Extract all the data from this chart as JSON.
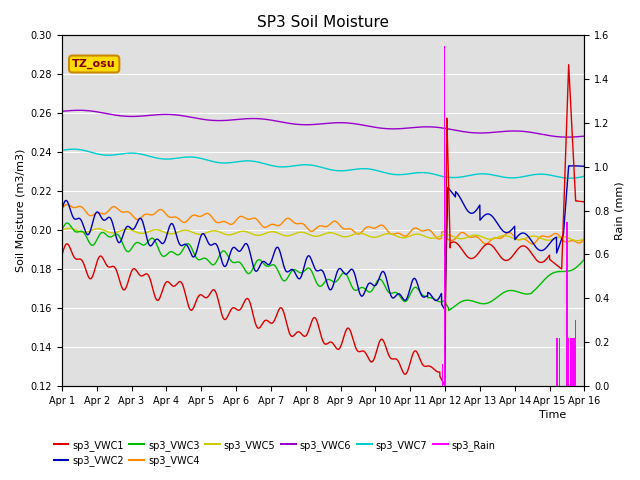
{
  "title": "SP3 Soil Moisture",
  "xlabel": "Time",
  "ylabel_left": "Soil Moisture (m3/m3)",
  "ylabel_right": "Rain (mm)",
  "xlim_days": [
    0,
    15
  ],
  "ylim_left": [
    0.12,
    0.3
  ],
  "ylim_right": [
    0.0,
    1.6
  ],
  "xtick_labels": [
    "Apr 1",
    "Apr 2",
    "Apr 3",
    "Apr 4",
    "Apr 5",
    "Apr 6",
    "Apr 7",
    "Apr 8",
    "Apr 9",
    "Apr 10",
    "Apr 11",
    "Apr 12",
    "Apr 13",
    "Apr 14",
    "Apr 15",
    "Apr 16"
  ],
  "ytick_left": [
    0.12,
    0.14,
    0.16,
    0.18,
    0.2,
    0.22,
    0.24,
    0.26,
    0.28,
    0.3
  ],
  "ytick_right": [
    0.0,
    0.2,
    0.4,
    0.6,
    0.8,
    1.0,
    1.2,
    1.4,
    1.6
  ],
  "background_color": "#e8e8e8",
  "plot_background": "#e0e0e0",
  "grid_color": "#ffffff",
  "colors": {
    "sp3_VWC1": "#dd0000",
    "sp3_VWC2": "#0000bb",
    "sp3_VWC3": "#00bb00",
    "sp3_VWC4": "#ff8800",
    "sp3_VWC5": "#cccc00",
    "sp3_VWC6": "#9900cc",
    "sp3_VWC7": "#00cccc",
    "sp3_Rain": "#ff00ff"
  },
  "annotation_text": "TZ_osu",
  "annotation_facecolor": "#ffdd00",
  "annotation_edgecolor": "#cc8800",
  "rain_times": [
    10.93,
    10.98,
    14.22,
    14.28,
    14.5,
    14.55,
    14.6,
    14.65,
    14.7,
    14.75
  ],
  "rain_values": [
    0.1,
    1.55,
    0.22,
    0.22,
    0.75,
    0.22,
    0.22,
    0.22,
    0.22,
    0.3
  ]
}
